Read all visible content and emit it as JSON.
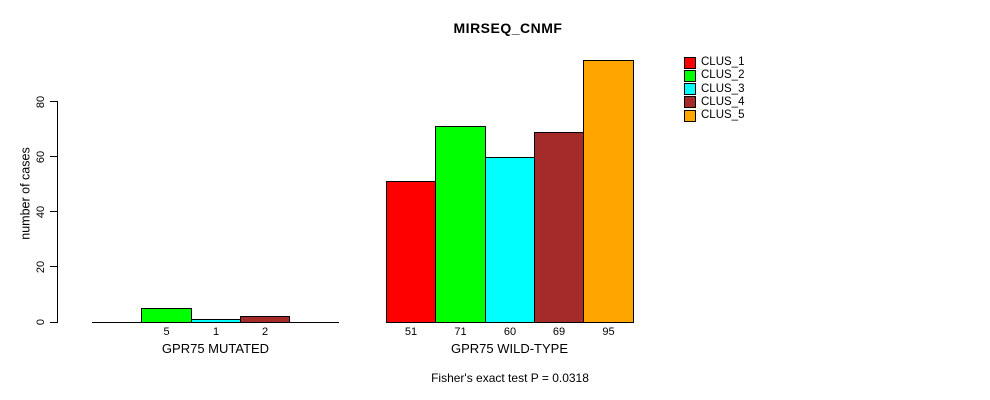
{
  "chart_data": {
    "type": "bar",
    "title": "MIRSEQ_CNMF",
    "ylabel": "number of cases",
    "yticks": [
      0,
      20,
      40,
      60,
      80
    ],
    "ylim": [
      0,
      95
    ],
    "grid": false,
    "legend_position": "right",
    "clusters": [
      {
        "name": "CLUS_1",
        "color": "#FF0000"
      },
      {
        "name": "CLUS_2",
        "color": "#00FF00"
      },
      {
        "name": "CLUS_3",
        "color": "#00FFFF"
      },
      {
        "name": "CLUS_4",
        "color": "#A52A2A"
      },
      {
        "name": "CLUS_5",
        "color": "#FFA500"
      }
    ],
    "groups": [
      {
        "label": "GPR75 MUTATED",
        "values": [
          0,
          5,
          1,
          2,
          0
        ],
        "bar_labels": [
          "",
          "5",
          "1",
          "2",
          ""
        ]
      },
      {
        "label": "GPR75 WILD-TYPE",
        "values": [
          51,
          71,
          60,
          69,
          95
        ],
        "bar_labels": [
          "51",
          "71",
          "60",
          "69",
          "95"
        ]
      }
    ],
    "footnote": "Fisher's exact test P = 0.0318"
  }
}
